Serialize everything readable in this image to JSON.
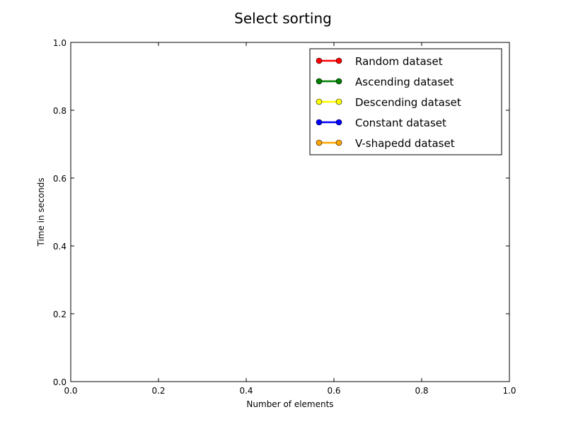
{
  "chart_data": {
    "type": "line",
    "title": "Select sorting",
    "xlabel": "Number of elements",
    "ylabel": "Time in seconds",
    "xlim": [
      0.0,
      1.0
    ],
    "ylim": [
      0.0,
      1.0
    ],
    "x_ticks": [
      "0.0",
      "0.2",
      "0.4",
      "0.6",
      "0.8",
      "1.0"
    ],
    "y_ticks": [
      "0.0",
      "0.2",
      "0.4",
      "0.6",
      "0.8",
      "1.0"
    ],
    "grid": false,
    "legend_position": "top-right",
    "series": [
      {
        "name": "Random dataset",
        "color": "#ff0000",
        "x": [],
        "y": []
      },
      {
        "name": "Ascending dataset",
        "color": "#008000",
        "x": [],
        "y": []
      },
      {
        "name": "Descending dataset",
        "color": "#ffff00",
        "x": [],
        "y": []
      },
      {
        "name": "Constant dataset",
        "color": "#0000ff",
        "x": [],
        "y": []
      },
      {
        "name": "V-shapedd dataset",
        "color": "#ffa500",
        "x": [],
        "y": []
      }
    ]
  }
}
